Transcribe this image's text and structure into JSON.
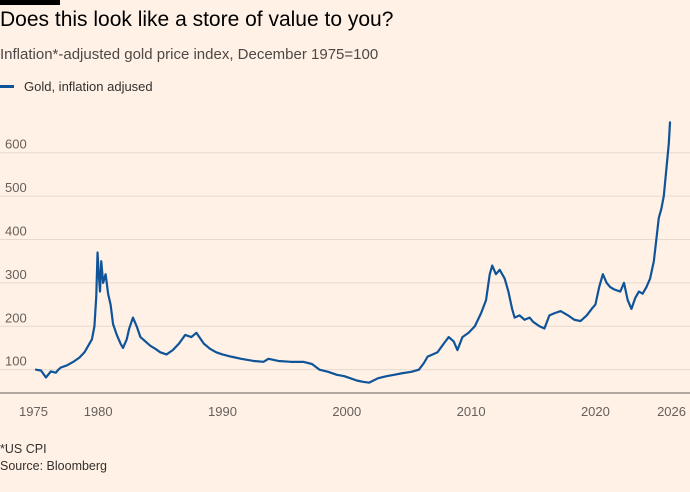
{
  "header": {
    "title": "Does this look like a store of value to you?",
    "subtitle": "Inflation*-adjusted gold price index, December 1975=100"
  },
  "footer": {
    "note": "*US CPI",
    "source": "Source: Bloomberg"
  },
  "colors": {
    "background": "#fff1e5",
    "series": "#0f5499",
    "gridline": "#e6d9ce",
    "baseline": "#66605c"
  },
  "chart_data": {
    "type": "line",
    "title": "Does this look like a store of value to you?",
    "subtitle": "Inflation*-adjusted gold price index, December 1975=100",
    "xlabel": "",
    "ylabel": "",
    "xlim": [
      1975,
      2026
    ],
    "ylim": [
      60,
      680
    ],
    "grid": true,
    "legend": "top-left",
    "y_ticks": [
      100,
      200,
      300,
      400,
      500,
      600
    ],
    "y_tick_labels": [
      "100",
      "200",
      "300",
      "400",
      "500",
      "600"
    ],
    "x_ticks": [
      1975,
      1980,
      1990,
      2000,
      2010,
      2020,
      2026
    ],
    "x_tick_labels": [
      "1975",
      "1980",
      "1990",
      "2000",
      "2010",
      "2020",
      "2026"
    ],
    "series": [
      {
        "name": "Gold, inflation adjused",
        "x": [
          1975.0,
          1975.4,
          1975.8,
          1976.2,
          1976.6,
          1976.8,
          1977.0,
          1977.5,
          1978.0,
          1978.5,
          1978.9,
          1979.2,
          1979.5,
          1979.7,
          1979.85,
          1979.95,
          1980.05,
          1980.15,
          1980.25,
          1980.4,
          1980.6,
          1980.8,
          1981.0,
          1981.2,
          1981.5,
          1981.8,
          1982.0,
          1982.3,
          1982.5,
          1982.8,
          1983.1,
          1983.4,
          1983.8,
          1984.2,
          1984.6,
          1985.0,
          1985.5,
          1986.0,
          1986.5,
          1987.0,
          1987.5,
          1987.9,
          1988.5,
          1989.0,
          1989.5,
          1990.0,
          1990.7,
          1991.5,
          1992.5,
          1993.3,
          1993.7,
          1994.5,
          1995.5,
          1996.5,
          1997.2,
          1997.8,
          1998.5,
          1999.2,
          1999.8,
          2000.3,
          2000.8,
          2001.3,
          2001.8,
          2002.5,
          2003.2,
          2003.8,
          2004.5,
          2005.2,
          2005.8,
          2006.2,
          2006.5,
          2006.9,
          2007.3,
          2007.8,
          2008.2,
          2008.6,
          2008.9,
          2009.3,
          2009.8,
          2010.3,
          2010.8,
          2011.2,
          2011.5,
          2011.7,
          2012.0,
          2012.3,
          2012.7,
          2013.0,
          2013.3,
          2013.5,
          2013.9,
          2014.3,
          2014.7,
          2015.0,
          2015.5,
          2015.9,
          2016.3,
          2016.7,
          2017.2,
          2017.8,
          2018.3,
          2018.8,
          2019.3,
          2019.7,
          2020.0,
          2020.3,
          2020.6,
          2020.9,
          2021.2,
          2021.5,
          2022.0,
          2022.3,
          2022.6,
          2022.9,
          2023.2,
          2023.5,
          2023.8,
          2024.1,
          2024.4,
          2024.7,
          2024.9,
          2025.1,
          2025.3,
          2025.5,
          2025.7,
          2025.8,
          2025.9,
          2026.0
        ],
        "values": [
          100,
          98,
          82,
          96,
          93,
          100,
          105,
          110,
          118,
          128,
          140,
          155,
          170,
          200,
          270,
          370,
          320,
          280,
          350,
          300,
          320,
          275,
          250,
          205,
          180,
          160,
          150,
          170,
          195,
          220,
          200,
          175,
          165,
          155,
          148,
          140,
          135,
          145,
          160,
          180,
          175,
          185,
          160,
          148,
          140,
          135,
          130,
          125,
          120,
          118,
          125,
          120,
          118,
          118,
          113,
          100,
          95,
          88,
          85,
          80,
          75,
          72,
          70,
          80,
          85,
          88,
          92,
          95,
          100,
          115,
          130,
          135,
          140,
          160,
          175,
          165,
          145,
          175,
          185,
          200,
          230,
          260,
          320,
          340,
          320,
          330,
          310,
          280,
          240,
          220,
          225,
          215,
          220,
          210,
          200,
          195,
          225,
          230,
          235,
          225,
          215,
          212,
          225,
          240,
          250,
          290,
          320,
          300,
          290,
          285,
          280,
          300,
          260,
          240,
          265,
          280,
          275,
          290,
          310,
          350,
          400,
          450,
          470,
          500,
          560,
          590,
          620,
          670
        ]
      }
    ]
  }
}
